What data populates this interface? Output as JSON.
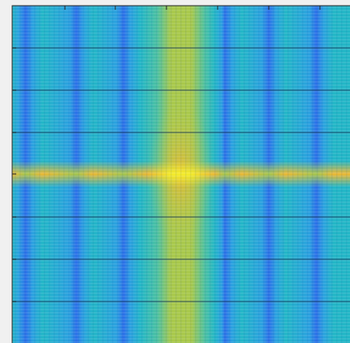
{
  "chart_data": {
    "type": "heatmap",
    "colors": [
      "#2b6fe8",
      "#2aa0e0",
      "#22b6c6",
      "#4cc0a0",
      "#a8c84a",
      "#f0b830",
      "#f4ec2a"
    ]
  }
}
